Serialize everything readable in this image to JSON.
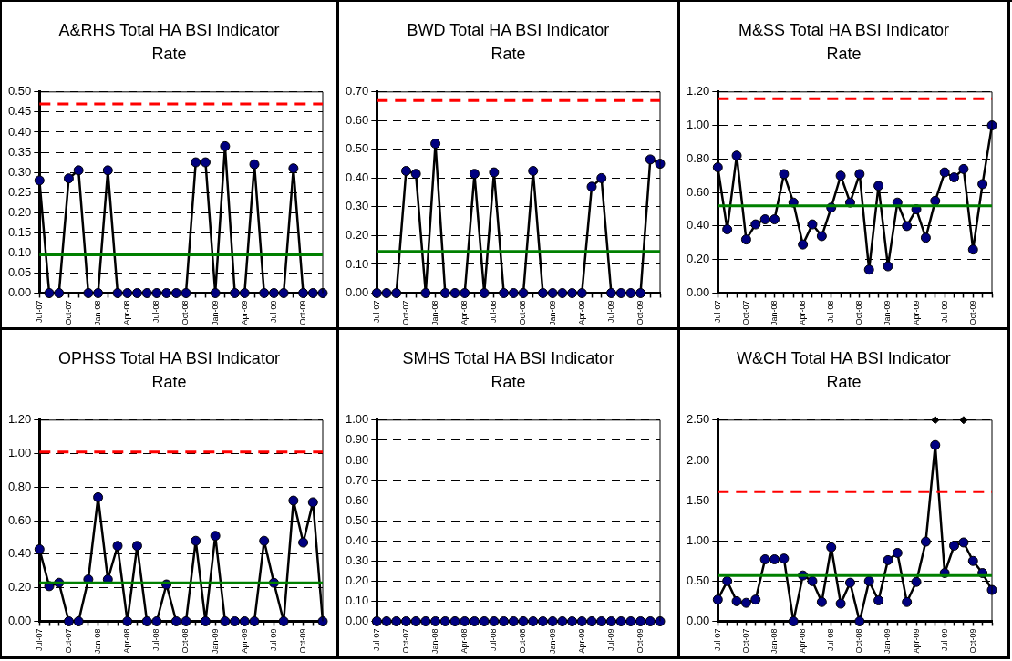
{
  "chart_data": [
    {
      "type": "line",
      "title": "A&RHS Total HA BSI Indicator Rate",
      "categories": [
        "Jul-07",
        null,
        null,
        "Oct-07",
        null,
        null,
        "Jan-08",
        null,
        null,
        "Apr-08",
        null,
        null,
        "Jul-08",
        null,
        null,
        "Oct-08",
        null,
        null,
        "Jan-09",
        null,
        null,
        "Apr-09",
        null,
        null,
        "Jul-09",
        null,
        null,
        "Oct-09",
        null,
        null
      ],
      "series": [
        {
          "color": "#000080",
          "values": [
            0.28,
            0,
            0,
            0.285,
            0.305,
            0,
            0,
            0.305,
            0,
            0,
            0,
            0,
            0,
            0,
            0,
            0,
            0.325,
            0.325,
            0,
            0.365,
            0,
            0,
            0.32,
            0,
            0,
            0,
            0.31,
            0,
            0,
            0
          ]
        }
      ],
      "ylim": [
        0,
        0.5
      ],
      "yticks": [
        {
          "value": 0,
          "label": "0.00"
        },
        {
          "value": 0.05,
          "label": "0.05"
        },
        {
          "value": 0.1,
          "label": "0.10"
        },
        {
          "value": 0.15,
          "label": "0.15"
        },
        {
          "value": 0.2,
          "label": "0.20"
        },
        {
          "value": 0.25,
          "label": "0.25"
        },
        {
          "value": 0.3,
          "label": "0.30"
        },
        {
          "value": 0.35,
          "label": "0.35"
        },
        {
          "value": 0.4,
          "label": "0.40"
        },
        {
          "value": 0.45,
          "label": "0.45"
        },
        {
          "value": 0.5,
          "label": "0.50"
        }
      ],
      "ref_lines": [
        {
          "axis": "y",
          "value": 0.47,
          "color": "#ff0000",
          "line_style": "dashed"
        },
        {
          "axis": "y",
          "value": 0.095,
          "color": "#008000",
          "line_style": "solid"
        }
      ],
      "grid": "y",
      "legend": false,
      "marker": "circle",
      "line_style": "solid"
    },
    {
      "type": "line",
      "title": "BWD Total HA BSI Indicator Rate",
      "categories": [
        "Jul-07",
        null,
        null,
        "Oct-07",
        null,
        null,
        "Jan-08",
        null,
        null,
        "Apr-08",
        null,
        null,
        "Jul-08",
        null,
        null,
        "Oct-08",
        null,
        null,
        "Jan-09",
        null,
        null,
        "Apr-09",
        null,
        null,
        "Jul-09",
        null,
        null,
        "Oct-09",
        null,
        null
      ],
      "series": [
        {
          "color": "#000080",
          "values": [
            0,
            0,
            0,
            0.425,
            0.415,
            0,
            0.52,
            0,
            0,
            0,
            0.415,
            0,
            0.42,
            0,
            0,
            0,
            0.425,
            0,
            0,
            0,
            0,
            0,
            0.37,
            0.4,
            0,
            0,
            0,
            0,
            0.465,
            0.45
          ]
        }
      ],
      "ylim": [
        0,
        0.7
      ],
      "yticks": [
        {
          "value": 0,
          "label": "0.00"
        },
        {
          "value": 0.1,
          "label": "0.10"
        },
        {
          "value": 0.2,
          "label": "0.20"
        },
        {
          "value": 0.3,
          "label": "0.30"
        },
        {
          "value": 0.4,
          "label": "0.40"
        },
        {
          "value": 0.5,
          "label": "0.50"
        },
        {
          "value": 0.6,
          "label": "0.60"
        },
        {
          "value": 0.7,
          "label": "0.70"
        }
      ],
      "ref_lines": [
        {
          "axis": "y",
          "value": 0.67,
          "color": "#ff0000",
          "line_style": "dashed"
        },
        {
          "axis": "y",
          "value": 0.145,
          "color": "#008000",
          "line_style": "solid"
        }
      ],
      "grid": "y",
      "legend": false,
      "marker": "circle",
      "line_style": "solid"
    },
    {
      "type": "line",
      "title": "M&SS Total HA BSI Indicator Rate",
      "categories": [
        "Jul-07",
        null,
        null,
        "Oct-07",
        null,
        null,
        "Jan-08",
        null,
        null,
        "Apr-08",
        null,
        null,
        "Jul-08",
        null,
        null,
        "Oct-08",
        null,
        null,
        "Jan-09",
        null,
        null,
        "Apr-09",
        null,
        null,
        "Jul-09",
        null,
        null,
        "Oct-09",
        null,
        null
      ],
      "series": [
        {
          "color": "#000080",
          "values": [
            0.75,
            0.38,
            0.82,
            0.32,
            0.41,
            0.44,
            0.44,
            0.71,
            0.54,
            0.29,
            0.41,
            0.34,
            0.51,
            0.7,
            0.54,
            0.71,
            0.14,
            0.64,
            0.16,
            0.54,
            0.4,
            0.5,
            0.33,
            0.55,
            0.72,
            0.69,
            0.74,
            0.26,
            0.65,
            1.0
          ]
        }
      ],
      "ylim": [
        0,
        1.2
      ],
      "yticks": [
        {
          "value": 0,
          "label": "0.00"
        },
        {
          "value": 0.2,
          "label": "0.20"
        },
        {
          "value": 0.4,
          "label": "0.40"
        },
        {
          "value": 0.6,
          "label": "0.60"
        },
        {
          "value": 0.8,
          "label": "0.80"
        },
        {
          "value": 1,
          "label": "1.00"
        },
        {
          "value": 1.2,
          "label": "1.20"
        }
      ],
      "ref_lines": [
        {
          "axis": "y",
          "value": 1.16,
          "color": "#ff0000",
          "line_style": "dashed"
        },
        {
          "axis": "y",
          "value": 0.52,
          "color": "#008000",
          "line_style": "solid"
        }
      ],
      "grid": "y",
      "legend": false,
      "marker": "circle",
      "line_style": "solid"
    },
    {
      "type": "line",
      "title": "OPHSS Total HA BSI Indicator Rate",
      "categories": [
        "Jul-07",
        null,
        null,
        "Oct-07",
        null,
        null,
        "Jan-08",
        null,
        null,
        "Apr-08",
        null,
        null,
        "Jul-08",
        null,
        null,
        "Oct-08",
        null,
        null,
        "Jan-09",
        null,
        null,
        "Apr-09",
        null,
        null,
        "Jul-09",
        null,
        null,
        "Oct-09",
        null,
        null
      ],
      "series": [
        {
          "color": "#000080",
          "values": [
            0.43,
            0.21,
            0.23,
            0,
            0,
            0.25,
            0.74,
            0.25,
            0.45,
            0,
            0.45,
            0,
            0,
            0.22,
            0,
            0,
            0.48,
            0,
            0.51,
            0,
            0,
            0,
            0,
            0.48,
            0.23,
            0,
            0.72,
            0.47,
            0.71,
            0
          ]
        }
      ],
      "ylim": [
        0,
        1.2
      ],
      "yticks": [
        {
          "value": 0,
          "label": "0.00"
        },
        {
          "value": 0.2,
          "label": "0.20"
        },
        {
          "value": 0.4,
          "label": "0.40"
        },
        {
          "value": 0.6,
          "label": "0.60"
        },
        {
          "value": 0.8,
          "label": "0.80"
        },
        {
          "value": 1,
          "label": "1.00"
        },
        {
          "value": 1.2,
          "label": "1.20"
        }
      ],
      "ref_lines": [
        {
          "axis": "y",
          "value": 1.01,
          "color": "#ff0000",
          "line_style": "dashed"
        },
        {
          "axis": "y",
          "value": 0.23,
          "color": "#008000",
          "line_style": "solid"
        }
      ],
      "grid": "y",
      "legend": false,
      "marker": "circle",
      "line_style": "solid"
    },
    {
      "type": "scatter",
      "title": "SMHS Total HA BSI Indicator Rate",
      "categories": [
        "Jul-07",
        null,
        null,
        "Oct-07",
        null,
        null,
        "Jan-08",
        null,
        null,
        "Apr-08",
        null,
        null,
        "Jul-08",
        null,
        null,
        "Oct-08",
        null,
        null,
        "Jan-09",
        null,
        null,
        "Apr-09",
        null,
        null,
        "Jul-09",
        null,
        null,
        "Oct-09",
        null,
        null
      ],
      "series": [
        {
          "color": "#000080",
          "values": [
            0,
            0,
            0,
            0,
            0,
            0,
            0,
            0,
            0,
            0,
            0,
            0,
            0,
            0,
            0,
            0,
            0,
            0,
            0,
            0,
            0,
            0,
            0,
            0,
            0,
            0,
            0,
            0,
            0,
            0
          ]
        }
      ],
      "ylim": [
        0,
        1
      ],
      "yticks": [
        {
          "value": 0,
          "label": "0.00"
        },
        {
          "value": 0.1,
          "label": "0.10"
        },
        {
          "value": 0.2,
          "label": "0.20"
        },
        {
          "value": 0.3,
          "label": "0.30"
        },
        {
          "value": 0.4,
          "label": "0.40"
        },
        {
          "value": 0.5,
          "label": "0.50"
        },
        {
          "value": 0.6,
          "label": "0.60"
        },
        {
          "value": 0.7,
          "label": "0.70"
        },
        {
          "value": 0.8,
          "label": "0.80"
        },
        {
          "value": 0.9,
          "label": "0.90"
        },
        {
          "value": 1,
          "label": "1.00"
        }
      ],
      "grid": "y",
      "legend": false,
      "marker": "circle",
      "line_style": "solid"
    },
    {
      "type": "line",
      "title": "W&CH Total HA BSI Indicator Rate",
      "categories": [
        "Jul-07",
        null,
        null,
        "Oct-07",
        null,
        null,
        "Jan-08",
        null,
        null,
        "Apr-08",
        null,
        null,
        "Jul-08",
        null,
        null,
        "Oct-08",
        null,
        null,
        "Jan-09",
        null,
        null,
        "Apr-09",
        null,
        null,
        "Jul-09",
        null,
        null,
        "Oct-09",
        null,
        null
      ],
      "series": [
        {
          "color": "#000080",
          "values": [
            0.27,
            0.5,
            0.25,
            0.23,
            0.27,
            0.77,
            0.77,
            0.78,
            0,
            0.57,
            0.5,
            0.24,
            0.92,
            0.22,
            0.48,
            0,
            0.5,
            0.26,
            0.76,
            0.85,
            0.24,
            0.49,
            0.99,
            2.19,
            0.6,
            0.94,
            0.98,
            0.75,
            0.6,
            0.39
          ]
        },
        {
          "type": "scatter",
          "marker": "diamond",
          "color": "#000000",
          "values": [
            null,
            null,
            null,
            null,
            null,
            null,
            null,
            null,
            null,
            null,
            null,
            null,
            null,
            null,
            null,
            null,
            null,
            null,
            null,
            null,
            null,
            null,
            null,
            2.5,
            null,
            null,
            2.5,
            null,
            null,
            null
          ]
        }
      ],
      "ylim": [
        0,
        2.5
      ],
      "yticks": [
        {
          "value": 0,
          "label": "0.00"
        },
        {
          "value": 0.5,
          "label": "0.50"
        },
        {
          "value": 1,
          "label": "1.00"
        },
        {
          "value": 1.5,
          "label": "1.50"
        },
        {
          "value": 2,
          "label": "2.00"
        },
        {
          "value": 2.5,
          "label": "2.50"
        }
      ],
      "ref_lines": [
        {
          "axis": "y",
          "value": 1.61,
          "color": "#ff0000",
          "line_style": "dashed"
        },
        {
          "axis": "y",
          "value": 0.57,
          "color": "#008000",
          "line_style": "solid"
        }
      ],
      "grid": "y",
      "legend": false,
      "marker": "circle",
      "line_style": "solid"
    }
  ]
}
